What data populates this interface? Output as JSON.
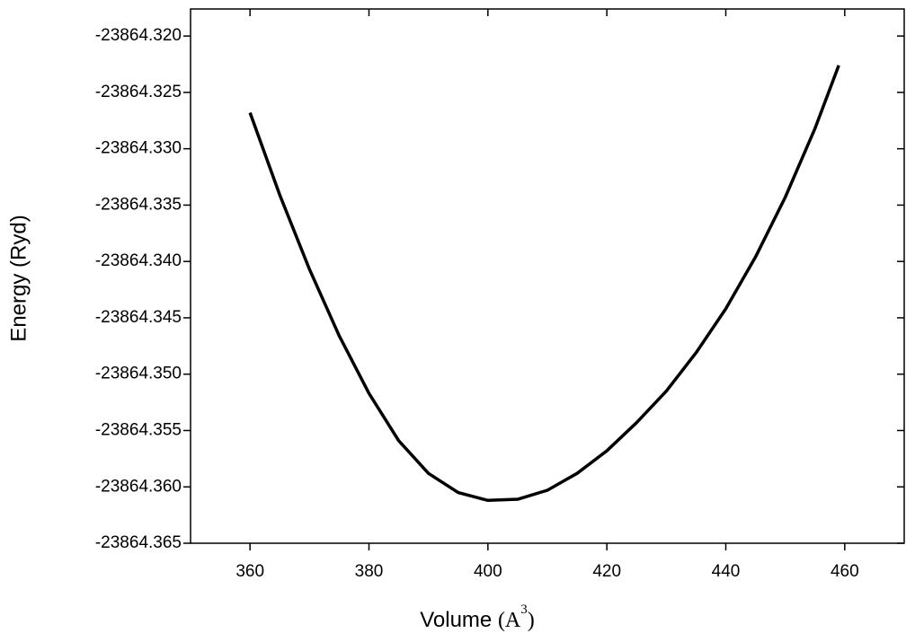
{
  "chart_data": {
    "type": "line",
    "xlabel": [
      "Volume ",
      "(A",
      "3",
      ")"
    ],
    "ylabel": "Energy (Ryd)",
    "x": [
      360,
      365,
      370,
      375,
      380,
      385,
      390,
      395,
      400,
      405,
      410,
      415,
      420,
      425,
      430,
      435,
      440,
      445,
      450,
      455,
      459
    ],
    "series": [
      {
        "color": "#000000",
        "values": [
          -23864.3268,
          -23864.3341,
          -23864.3407,
          -23864.3466,
          -23864.3517,
          -23864.3559,
          -23864.3588,
          -23864.3605,
          -23864.3612,
          -23864.3611,
          -23864.3603,
          -23864.3588,
          -23864.3568,
          -23864.3543,
          -23864.3515,
          -23864.3481,
          -23864.3442,
          -23864.3396,
          -23864.3343,
          -23864.3282,
          -23864.3226
        ]
      }
    ],
    "xlim": [
      350,
      470
    ],
    "xticks": [
      360,
      380,
      400,
      420,
      440,
      460
    ],
    "ylim": [
      -23864.365,
      -23864.3176
    ],
    "yticks": [
      {
        "value": -23864.365,
        "label": "-23864.365"
      },
      {
        "value": -23864.36,
        "label": "-23864.360"
      },
      {
        "value": -23864.355,
        "label": "-23864.355"
      },
      {
        "value": -23864.35,
        "label": "-23864.350"
      },
      {
        "value": -23864.345,
        "label": "-23864.345"
      },
      {
        "value": -23864.34,
        "label": "-23864.340"
      },
      {
        "value": -23864.335,
        "label": "-23864.335"
      },
      {
        "value": -23864.33,
        "label": "-23864.330"
      },
      {
        "value": -23864.325,
        "label": "-23864.325"
      },
      {
        "value": -23864.32,
        "label": "-23864.320"
      }
    ],
    "grid": false
  }
}
